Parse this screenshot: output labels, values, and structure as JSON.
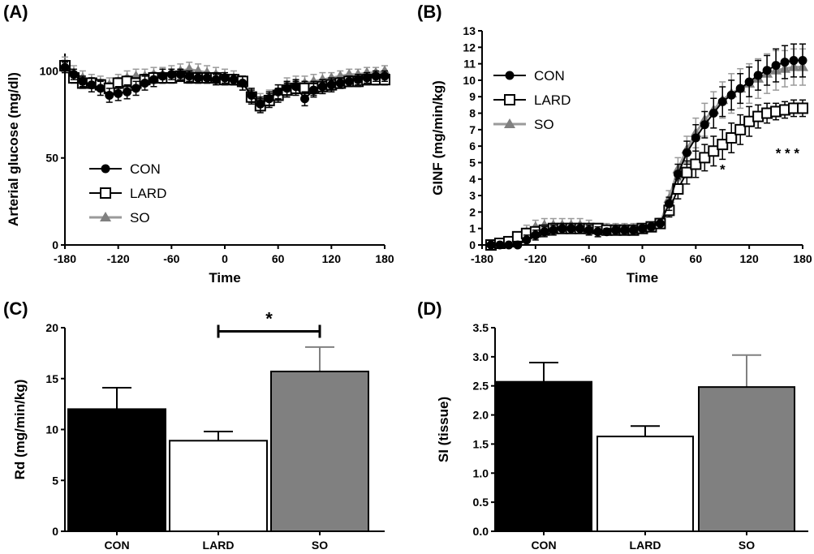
{
  "chart_data": [
    {
      "panel_label": "(A)",
      "type": "line",
      "xlabel": "Time",
      "ylabel": "Arterial glucose (mg/dl)",
      "xlim": [
        -180,
        180
      ],
      "ylim": [
        0,
        110
      ],
      "xticks": [
        "-180",
        "-120",
        "-60",
        "0",
        "60",
        "120",
        "180"
      ],
      "yticks": [
        "0",
        "50",
        "100"
      ],
      "legend": {
        "placement": "lower-left",
        "entries": [
          "CON",
          "LARD",
          "SO"
        ]
      },
      "x": [
        -180,
        -170,
        -160,
        -150,
        -140,
        -130,
        -120,
        -110,
        -100,
        -90,
        -80,
        -70,
        -60,
        -50,
        -40,
        -30,
        -20,
        -10,
        0,
        10,
        20,
        30,
        40,
        50,
        60,
        70,
        80,
        90,
        100,
        110,
        120,
        130,
        140,
        150,
        160,
        170,
        180
      ],
      "series": [
        {
          "name": "CON",
          "marker": "circle",
          "color": "#000000",
          "values": [
            102,
            98,
            94,
            92,
            90,
            86,
            87,
            88,
            90,
            93,
            95,
            97,
            98,
            98,
            97,
            96,
            96,
            95,
            96,
            95,
            93,
            86,
            81,
            84,
            88,
            90,
            91,
            84,
            89,
            91,
            92,
            93,
            94,
            95,
            96,
            97,
            97
          ],
          "errors": [
            3,
            3,
            3,
            4,
            4,
            4,
            4,
            4,
            4,
            4,
            4,
            4,
            3,
            3,
            3,
            3,
            3,
            3,
            3,
            3,
            4,
            4,
            4,
            4,
            4,
            4,
            4,
            4,
            4,
            4,
            4,
            3,
            3,
            3,
            3,
            3,
            3
          ]
        },
        {
          "name": "LARD",
          "marker": "square-open",
          "color": "#000000",
          "values": [
            103,
            96,
            93,
            93,
            92,
            90,
            93,
            94,
            93,
            95,
            96,
            96,
            96,
            97,
            96,
            96,
            96,
            96,
            95,
            95,
            94,
            85,
            80,
            83,
            86,
            89,
            90,
            90,
            90,
            91,
            92,
            93,
            94,
            94,
            95,
            95,
            95
          ],
          "errors": [
            3,
            3,
            3,
            3,
            3,
            3,
            3,
            3,
            3,
            3,
            3,
            3,
            3,
            3,
            3,
            3,
            3,
            3,
            3,
            3,
            3,
            4,
            4,
            4,
            4,
            4,
            4,
            4,
            4,
            4,
            3,
            3,
            3,
            3,
            3,
            3,
            3
          ]
        },
        {
          "name": "SO",
          "marker": "triangle",
          "color": "#808080",
          "values": [
            104,
            99,
            96,
            94,
            93,
            92,
            94,
            96,
            97,
            97,
            98,
            98,
            99,
            100,
            101,
            100,
            99,
            98,
            97,
            96,
            93,
            86,
            83,
            85,
            88,
            92,
            93,
            93,
            94,
            95,
            96,
            97,
            98,
            98,
            99,
            99,
            100
          ],
          "errors": [
            4,
            4,
            4,
            4,
            4,
            4,
            4,
            4,
            4,
            4,
            4,
            4,
            4,
            4,
            4,
            4,
            4,
            4,
            4,
            4,
            4,
            4,
            4,
            4,
            4,
            4,
            4,
            4,
            4,
            4,
            3,
            3,
            3,
            3,
            3,
            3,
            3
          ]
        }
      ]
    },
    {
      "panel_label": "(B)",
      "type": "line",
      "xlabel": "Time",
      "ylabel": "GINF (mg/min/kg)",
      "xlim": [
        -180,
        180
      ],
      "ylim": [
        0,
        13
      ],
      "xticks": [
        "-180",
        "-120",
        "-60",
        "0",
        "60",
        "120",
        "180"
      ],
      "yticks": [
        "0",
        "1",
        "2",
        "3",
        "4",
        "5",
        "6",
        "7",
        "8",
        "9",
        "10",
        "11",
        "12",
        "13"
      ],
      "legend": {
        "placement": "upper-left",
        "entries": [
          "CON",
          "LARD",
          "SO"
        ]
      },
      "annotations": [
        {
          "text": "*",
          "x": 90,
          "y": 4.6
        },
        {
          "text": "* * *",
          "x": 163,
          "y": 5.6
        }
      ],
      "x": [
        -170,
        -160,
        -150,
        -140,
        -130,
        -120,
        -110,
        -100,
        -90,
        -80,
        -70,
        -60,
        -50,
        -40,
        -30,
        -20,
        -10,
        0,
        10,
        20,
        30,
        40,
        50,
        60,
        70,
        80,
        90,
        100,
        110,
        120,
        130,
        140,
        150,
        160,
        170,
        180
      ],
      "series": [
        {
          "name": "CON",
          "marker": "circle",
          "color": "#000000",
          "values": [
            0,
            0,
            0,
            0,
            0.3,
            0.6,
            0.8,
            0.9,
            1.0,
            1.0,
            1.0,
            0.9,
            0.8,
            0.8,
            0.9,
            0.9,
            0.9,
            1.0,
            1.1,
            1.3,
            2.5,
            4.3,
            5.6,
            6.5,
            7.3,
            8.0,
            8.7,
            9.1,
            9.5,
            9.9,
            10.3,
            10.6,
            10.9,
            11.1,
            11.2,
            11.2
          ],
          "errors": [
            0,
            0,
            0,
            0,
            0.3,
            0.3,
            0.3,
            0.3,
            0.3,
            0.3,
            0.3,
            0.3,
            0.3,
            0.2,
            0.2,
            0.2,
            0.2,
            0.2,
            0.2,
            0.3,
            0.4,
            0.6,
            0.7,
            0.8,
            0.8,
            0.9,
            0.9,
            0.9,
            0.9,
            0.9,
            0.9,
            0.9,
            1.0,
            1.0,
            1.0,
            1.0
          ]
        },
        {
          "name": "LARD",
          "marker": "square-open",
          "color": "#000000",
          "values": [
            0,
            0.1,
            0.2,
            0.5,
            0.7,
            0.8,
            0.9,
            1.0,
            1.0,
            1.0,
            1.0,
            1.0,
            1.0,
            0.9,
            0.9,
            0.9,
            0.9,
            1.0,
            1.1,
            1.3,
            2.1,
            3.4,
            4.4,
            4.9,
            5.3,
            5.7,
            6.1,
            6.5,
            7.0,
            7.5,
            7.8,
            8.0,
            8.1,
            8.2,
            8.3,
            8.3
          ],
          "errors": [
            0,
            0.1,
            0.2,
            0.3,
            0.3,
            0.3,
            0.3,
            0.3,
            0.3,
            0.3,
            0.3,
            0.3,
            0.2,
            0.2,
            0.2,
            0.2,
            0.2,
            0.2,
            0.2,
            0.3,
            0.4,
            0.6,
            0.7,
            0.8,
            0.8,
            0.9,
            0.9,
            0.9,
            0.9,
            0.9,
            0.7,
            0.6,
            0.5,
            0.5,
            0.5,
            0.5
          ]
        },
        {
          "name": "SO",
          "marker": "triangle",
          "color": "#808080",
          "values": [
            0,
            0,
            0.1,
            0.4,
            0.8,
            1.1,
            1.2,
            1.2,
            1.2,
            1.2,
            1.2,
            1.1,
            1.0,
            1.0,
            1.0,
            1.0,
            1.0,
            1.0,
            1.1,
            1.3,
            2.8,
            4.6,
            5.8,
            6.8,
            7.6,
            8.2,
            8.8,
            9.2,
            9.5,
            9.8,
            10.1,
            10.4,
            10.6,
            10.7,
            10.8,
            10.8
          ],
          "errors": [
            0,
            0,
            0.1,
            0.3,
            0.4,
            0.4,
            0.4,
            0.4,
            0.4,
            0.4,
            0.4,
            0.4,
            0.3,
            0.3,
            0.3,
            0.3,
            0.3,
            0.3,
            0.3,
            0.3,
            0.5,
            0.7,
            0.8,
            0.9,
            1.0,
            1.1,
            1.1,
            1.2,
            1.2,
            1.2,
            1.2,
            1.2,
            1.2,
            1.1,
            1.1,
            1.1
          ]
        }
      ]
    },
    {
      "panel_label": "(C)",
      "type": "bar",
      "xlabel": "",
      "ylabel": "Rd (mg/min/kg)",
      "ylim": [
        0,
        20
      ],
      "yticks": [
        "0",
        "5",
        "10",
        "15",
        "20"
      ],
      "categories": [
        "CON",
        "LARD",
        "SO"
      ],
      "values": [
        12.0,
        8.9,
        15.7
      ],
      "errors": [
        2.1,
        0.9,
        2.4
      ],
      "colors": [
        "#000000",
        "#ffffff",
        "#808080"
      ],
      "significance": {
        "from": "LARD",
        "to": "SO",
        "text": "*",
        "y": 19.8
      }
    },
    {
      "panel_label": "(D)",
      "type": "bar",
      "xlabel": "",
      "ylabel": "SI (tissue)",
      "ylim": [
        0,
        3.5
      ],
      "yticks": [
        "0.0",
        "0.5",
        "1.0",
        "1.5",
        "2.0",
        "2.5",
        "3.0",
        "3.5"
      ],
      "categories": [
        "CON",
        "LARD",
        "SO"
      ],
      "values": [
        2.57,
        1.63,
        2.48
      ],
      "errors": [
        0.33,
        0.18,
        0.55
      ],
      "colors": [
        "#000000",
        "#ffffff",
        "#808080"
      ]
    }
  ]
}
